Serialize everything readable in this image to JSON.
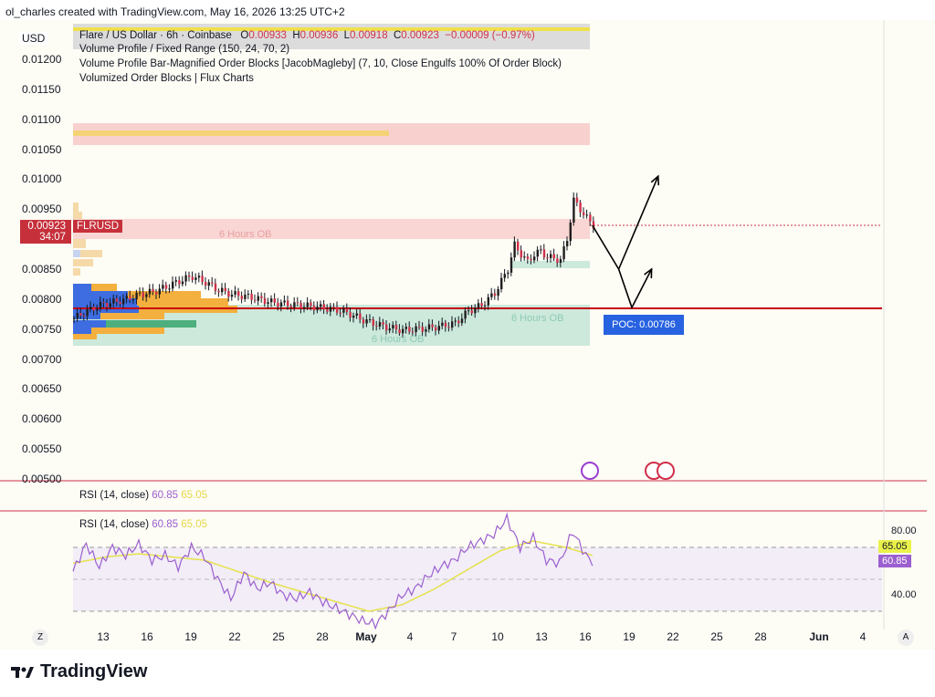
{
  "header": {
    "text": "ol_charles created with TradingView.com, May 16, 2026 13:25 UTC+2"
  },
  "currency": "USD",
  "legend": {
    "title": "Flare / US Dollar · 6h · Coinbase",
    "o_label": "O",
    "o": "0.00933",
    "h_label": "H",
    "h": "0.00936",
    "l_label": "L",
    "l": "0.00918",
    "c_label": "C",
    "c": "0.00923",
    "change": "−0.00009 (−0.97%)",
    "indicators": [
      "Volume Profile / Fixed Range (150, 24, 70, 2)",
      "Volume Profile Bar-Magnified Order Blocks [JacobMagleby] (7, 10, Close Engulfs 100% Of Order Block)",
      "Volumized Order Blocks | Flux Charts"
    ]
  },
  "price_tag": {
    "price": "0.00923",
    "countdown": "34:07",
    "symbol": "FLRUSD"
  },
  "poc_label": "POC: 0.00786",
  "ob_labels": [
    "6 Hours OB",
    "6 Hours OB",
    "6 Hours OB"
  ],
  "rsi": {
    "pane1": {
      "name": "RSI (14, close)",
      "v1": "60.85",
      "v2": "65.05"
    },
    "pane2": {
      "name": "RSI (14, close)",
      "v1": "60.85",
      "v2": "65.05"
    },
    "scale": [
      "80.00",
      "40.00"
    ],
    "badge_ma": "65.05",
    "badge_rsi": "60.85"
  },
  "x_axis": {
    "labels": [
      "13",
      "16",
      "19",
      "22",
      "25",
      "28",
      "May",
      "4",
      "7",
      "10",
      "13",
      "16",
      "19",
      "22",
      "25",
      "28",
      "Jun",
      "4"
    ]
  },
  "buttons": {
    "z": "Z",
    "a": "A"
  },
  "logo": "TradingView",
  "colors": {
    "up": "#26a69a",
    "down": "#d0304a",
    "candle": "#131722",
    "poc_line": "#c6000e",
    "rsi": "#9b5fcf",
    "rsi_ma": "#e6e24a",
    "poc_box": "#2762e0"
  },
  "chart_data": {
    "type": "candlestick",
    "title": "Flare / US Dollar · 6h · Coinbase",
    "y_ticks": [
      "0.01200",
      "0.01150",
      "0.01100",
      "0.01050",
      "0.01000",
      "0.00950",
      "0.00900",
      "0.00850",
      "0.00800",
      "0.00750",
      "0.00700",
      "0.00650",
      "0.00600",
      "0.00550",
      "0.00500"
    ],
    "ylim": [
      0.005,
      0.0122
    ],
    "poc": 0.00786,
    "last_price": 0.00923,
    "close_path": [
      [
        0,
        0.00768
      ],
      [
        4,
        0.0078
      ],
      [
        8,
        0.0079
      ],
      [
        12,
        0.00795
      ],
      [
        16,
        0.008
      ],
      [
        20,
        0.00808
      ],
      [
        24,
        0.00812
      ],
      [
        28,
        0.0082
      ],
      [
        32,
        0.0083
      ],
      [
        36,
        0.00838
      ],
      [
        40,
        0.00828
      ],
      [
        44,
        0.00815
      ],
      [
        48,
        0.00808
      ],
      [
        52,
        0.00805
      ],
      [
        56,
        0.008
      ],
      [
        60,
        0.00795
      ],
      [
        64,
        0.00792
      ],
      [
        68,
        0.0079
      ],
      [
        72,
        0.00788
      ],
      [
        76,
        0.00785
      ],
      [
        80,
        0.00782
      ],
      [
        84,
        0.00775
      ],
      [
        88,
        0.00765
      ],
      [
        92,
        0.00758
      ],
      [
        96,
        0.00752
      ],
      [
        100,
        0.00748
      ],
      [
        104,
        0.0075
      ],
      [
        108,
        0.00752
      ],
      [
        112,
        0.00755
      ],
      [
        116,
        0.0076
      ],
      [
        120,
        0.0078
      ],
      [
        124,
        0.0079
      ],
      [
        128,
        0.0081
      ],
      [
        132,
        0.0085
      ],
      [
        134,
        0.0089
      ],
      [
        136,
        0.00875
      ],
      [
        138,
        0.00862
      ],
      [
        140,
        0.00875
      ],
      [
        142,
        0.0088
      ],
      [
        144,
        0.0087
      ],
      [
        146,
        0.00868
      ],
      [
        148,
        0.00865
      ],
      [
        150,
        0.009
      ],
      [
        152,
        0.00965
      ],
      [
        154,
        0.0095
      ],
      [
        156,
        0.00935
      ],
      [
        158,
        0.00923
      ]
    ],
    "projection_paths": [
      [
        [
          158,
          0.00923
        ],
        [
          166,
          0.0085
        ],
        [
          178,
          0.01005
        ]
      ],
      [
        [
          166,
          0.0085
        ],
        [
          170,
          0.00786
        ],
        [
          176,
          0.0085
        ]
      ]
    ],
    "rsi_series": [
      [
        0,
        55
      ],
      [
        4,
        72
      ],
      [
        8,
        58
      ],
      [
        12,
        70
      ],
      [
        16,
        65
      ],
      [
        20,
        72
      ],
      [
        24,
        62
      ],
      [
        28,
        65
      ],
      [
        32,
        58
      ],
      [
        36,
        70
      ],
      [
        40,
        64
      ],
      [
        44,
        50
      ],
      [
        48,
        38
      ],
      [
        52,
        54
      ],
      [
        56,
        44
      ],
      [
        60,
        48
      ],
      [
        64,
        40
      ],
      [
        68,
        38
      ],
      [
        72,
        42
      ],
      [
        76,
        36
      ],
      [
        80,
        32
      ],
      [
        84,
        28
      ],
      [
        88,
        24
      ],
      [
        92,
        22
      ],
      [
        96,
        30
      ],
      [
        100,
        40
      ],
      [
        104,
        44
      ],
      [
        108,
        52
      ],
      [
        112,
        58
      ],
      [
        116,
        62
      ],
      [
        120,
        70
      ],
      [
        124,
        74
      ],
      [
        128,
        78
      ],
      [
        132,
        88
      ],
      [
        136,
        70
      ],
      [
        140,
        76
      ],
      [
        144,
        62
      ],
      [
        148,
        60
      ],
      [
        152,
        80
      ],
      [
        156,
        65
      ],
      [
        158,
        61
      ]
    ],
    "rsi_ma_series": [
      [
        0,
        60
      ],
      [
        10,
        64
      ],
      [
        20,
        66
      ],
      [
        30,
        64
      ],
      [
        40,
        62
      ],
      [
        50,
        55
      ],
      [
        60,
        48
      ],
      [
        70,
        42
      ],
      [
        80,
        36
      ],
      [
        90,
        30
      ],
      [
        100,
        34
      ],
      [
        110,
        44
      ],
      [
        120,
        56
      ],
      [
        130,
        68
      ],
      [
        140,
        74
      ],
      [
        150,
        70
      ],
      [
        158,
        65
      ]
    ],
    "rsi_ylim": [
      20,
      90
    ],
    "rsi_levels": [
      70,
      50,
      30
    ]
  }
}
